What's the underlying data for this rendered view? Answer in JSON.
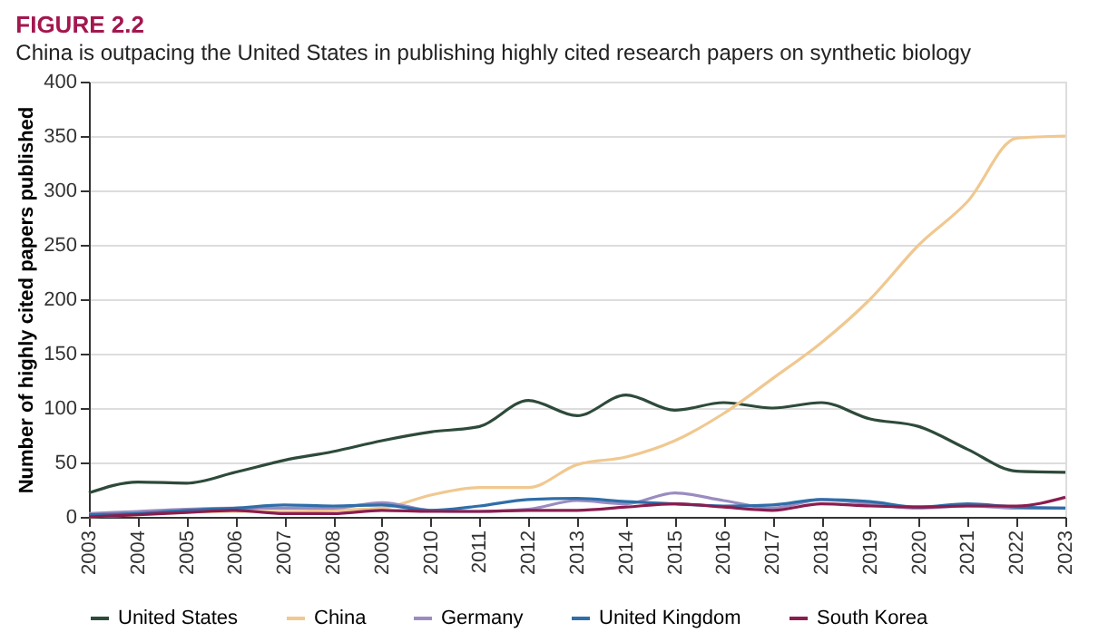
{
  "chart_data": {
    "type": "line",
    "title": "FIGURE 2.2",
    "subtitle": "China is outpacing the United States in publishing highly cited research papers on synthetic biology",
    "ylabel": "Number of highly cited papers published",
    "categories": [
      "2003",
      "2004",
      "2005",
      "2006",
      "2007",
      "2008",
      "2009",
      "2010",
      "2011",
      "2012",
      "2013",
      "2014",
      "2015",
      "2016",
      "2017",
      "2018",
      "2019",
      "2020",
      "2021",
      "2022",
      "2023"
    ],
    "series": [
      {
        "name": "United States",
        "color": "#2e4a3a",
        "values": [
          22,
          32,
          31,
          41,
          52,
          60,
          70,
          78,
          83,
          107,
          93,
          112,
          98,
          105,
          100,
          105,
          90,
          83,
          62,
          42,
          41
        ]
      },
      {
        "name": "China",
        "color": "#f0c890",
        "values": [
          0,
          2,
          4,
          5,
          5,
          6,
          8,
          20,
          27,
          27,
          48,
          55,
          70,
          95,
          127,
          160,
          200,
          250,
          290,
          348,
          350
        ]
      },
      {
        "name": "Germany",
        "color": "#9a8cc0",
        "values": [
          3,
          5,
          7,
          8,
          8,
          8,
          13,
          6,
          5,
          7,
          15,
          12,
          22,
          15,
          8,
          16,
          12,
          8,
          10,
          8,
          8
        ]
      },
      {
        "name": "United Kingdom",
        "color": "#2f6ea8",
        "values": [
          2,
          3,
          6,
          8,
          11,
          10,
          11,
          6,
          10,
          16,
          17,
          14,
          12,
          10,
          11,
          16,
          14,
          9,
          12,
          9,
          8
        ]
      },
      {
        "name": "South Korea",
        "color": "#8a1d4f",
        "values": [
          0,
          2,
          4,
          6,
          3,
          3,
          6,
          5,
          5,
          6,
          6,
          9,
          12,
          9,
          6,
          12,
          10,
          9,
          10,
          10,
          18
        ]
      }
    ],
    "ylim": [
      0,
      400
    ],
    "yticks": [
      0,
      50,
      100,
      150,
      200,
      250,
      300,
      350,
      400
    ],
    "grid": "y",
    "legend": "bottom",
    "marker": "none",
    "line_style": "solid"
  }
}
